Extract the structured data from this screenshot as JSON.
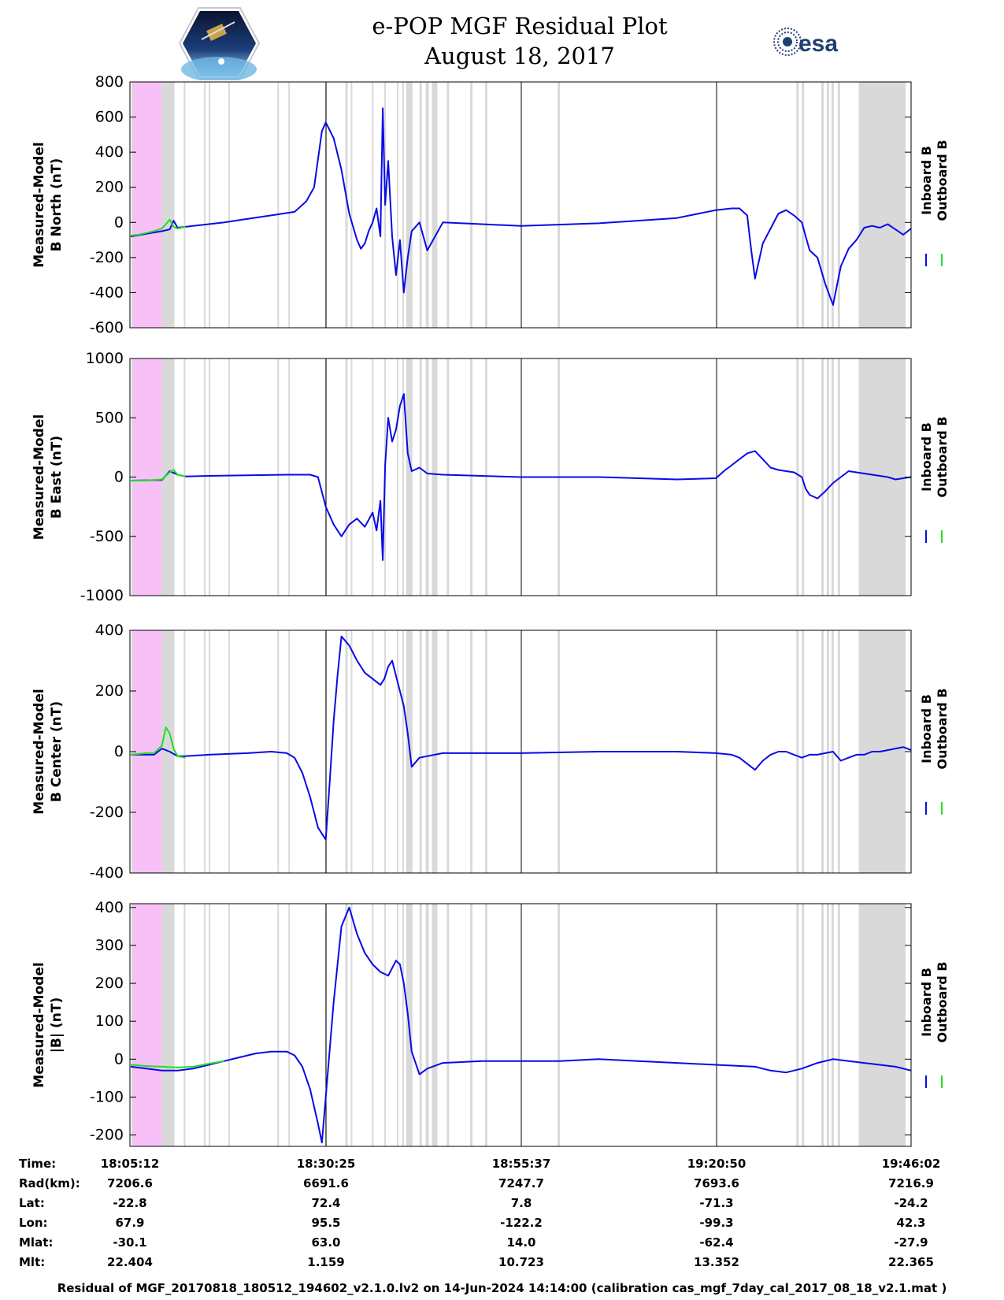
{
  "title": [
    "e-POP MGF Residual Plot",
    "August 18, 2017"
  ],
  "logos": {
    "left": "CASSIOPE",
    "right": "esa"
  },
  "colors": {
    "inboard": "#0a0ae6",
    "outboard": "#22dd22",
    "gap": "#d9d9d9",
    "calibration": "#f7c1f7"
  },
  "legend": {
    "inboard": "Inboard B",
    "outboard": "Outboard B"
  },
  "x_ticks": [
    "18:05:12",
    "18:30:25",
    "18:55:37",
    "19:20:50",
    "19:46:02"
  ],
  "info_rows": [
    {
      "label": "Time:",
      "values": [
        "18:05:12",
        "18:30:25",
        "18:55:37",
        "19:20:50",
        "19:46:02"
      ]
    },
    {
      "label": "Rad(km):",
      "values": [
        "7206.6",
        "6691.6",
        "7247.7",
        "7693.6",
        "7216.9"
      ]
    },
    {
      "label": "Lat:",
      "values": [
        "-22.8",
        "72.4",
        "7.8",
        "-71.3",
        "-24.2"
      ]
    },
    {
      "label": "Lon:",
      "values": [
        "67.9",
        "95.5",
        "-122.2",
        "-99.3",
        "42.3"
      ]
    },
    {
      "label": "Mlat:",
      "values": [
        "-30.1",
        "63.0",
        "14.0",
        "-62.4",
        "-27.9"
      ]
    },
    {
      "label": "Mlt:",
      "values": [
        "22.404",
        "1.159",
        "10.723",
        "13.352",
        "22.365"
      ]
    }
  ],
  "footer": "Residual of MGF_20170818_180512_194602_v2.1.0.lv2 on 14-Jun-2024 14:14:00 (calibration cas_mgf_7day_cal_2017_08_18_v2.1.mat )",
  "chart_data": [
    {
      "type": "line",
      "ylabel": [
        "Measured-Model",
        "B North (nT)"
      ],
      "ylim": [
        -600,
        800
      ],
      "yticks": [
        -600,
        -400,
        -200,
        0,
        200,
        400,
        600,
        800
      ],
      "xlim": [
        -0.1,
        100
      ],
      "series": [
        {
          "name": "Inboard B",
          "x": [
            0,
            2,
            4,
            5,
            5.5,
            6,
            7,
            9,
            12,
            15,
            18,
            21,
            22.5,
            23.5,
            24.5,
            25,
            26,
            27,
            28,
            29,
            29.5,
            30,
            30.5,
            31,
            31.5,
            32,
            32.3,
            32.6,
            33,
            33.5,
            34,
            34.5,
            35,
            35.5,
            36,
            37,
            38,
            40,
            50,
            60,
            65,
            70,
            75,
            76,
            77,
            78,
            79,
            79.5,
            80,
            81,
            83,
            84,
            85,
            86,
            86.5,
            87,
            88,
            89,
            90,
            91,
            92,
            93,
            94,
            95,
            96,
            97,
            98,
            99,
            100
          ],
          "y": [
            -80,
            -65,
            -50,
            -40,
            10,
            -30,
            -25,
            -15,
            0,
            20,
            40,
            60,
            120,
            200,
            520,
            570,
            480,
            300,
            50,
            -100,
            -150,
            -120,
            -50,
            0,
            80,
            -80,
            650,
            100,
            350,
            -80,
            -300,
            -100,
            -400,
            -200,
            -50,
            0,
            -160,
            0,
            -20,
            -5,
            10,
            25,
            70,
            75,
            80,
            80,
            40,
            -150,
            -320,
            -120,
            50,
            70,
            40,
            0,
            -80,
            -160,
            -200,
            -350,
            -470,
            -250,
            -150,
            -100,
            -30,
            -20,
            -30,
            -10,
            -40,
            -70,
            -35
          ]
        },
        {
          "name": "Outboard B",
          "x": [
            0,
            1,
            2,
            3,
            4,
            4.5,
            5,
            5.5,
            6,
            7
          ],
          "y": [
            -75,
            -70,
            -60,
            -50,
            -35,
            -10,
            15,
            -25,
            -35,
            -25
          ]
        }
      ]
    },
    {
      "type": "line",
      "ylabel": [
        "Measured-Model",
        "B East (nT)"
      ],
      "ylim": [
        -1000,
        1000
      ],
      "yticks": [
        -1000,
        -500,
        0,
        500,
        1000
      ],
      "xlim": [
        -0.1,
        100
      ],
      "series": [
        {
          "name": "Inboard B",
          "x": [
            0,
            4,
            5,
            6,
            7,
            10,
            15,
            20,
            23,
            24,
            25,
            26,
            27,
            28,
            29,
            30,
            31,
            31.5,
            32,
            32.3,
            32.6,
            33,
            33.5,
            34,
            34.5,
            35,
            35.5,
            36,
            37,
            38,
            40,
            50,
            60,
            70,
            75,
            76,
            77,
            78,
            79,
            80,
            81,
            82,
            83,
            84,
            85,
            86,
            86.5,
            87,
            88,
            89,
            90,
            91,
            92,
            93,
            94,
            95,
            96,
            97,
            98,
            99,
            100
          ],
          "y": [
            -30,
            -25,
            50,
            20,
            5,
            10,
            15,
            20,
            20,
            0,
            -250,
            -400,
            -500,
            -400,
            -350,
            -420,
            -300,
            -450,
            -200,
            -700,
            100,
            500,
            300,
            400,
            600,
            700,
            200,
            50,
            80,
            30,
            20,
            0,
            0,
            -20,
            -10,
            50,
            100,
            150,
            200,
            220,
            150,
            80,
            60,
            50,
            40,
            0,
            -100,
            -150,
            -180,
            -120,
            -50,
            0,
            50,
            40,
            30,
            20,
            10,
            0,
            -20,
            -10,
            0
          ]
        },
        {
          "name": "Outboard B",
          "x": [
            0,
            2,
            4,
            5,
            5.5,
            6,
            7
          ],
          "y": [
            -30,
            -28,
            -20,
            40,
            60,
            20,
            5
          ]
        }
      ]
    },
    {
      "type": "line",
      "ylabel": [
        "Measured-Model",
        "B Center (nT)"
      ],
      "ylim": [
        -400,
        400
      ],
      "yticks": [
        -400,
        -200,
        0,
        200,
        400
      ],
      "xlim": [
        -0.1,
        100
      ],
      "series": [
        {
          "name": "Inboard B",
          "x": [
            0,
            3,
            4,
            5,
            6,
            7,
            10,
            15,
            18,
            20,
            21,
            22,
            23,
            24,
            25,
            25.5,
            26,
            26.5,
            27,
            28,
            29,
            30,
            31,
            32,
            32.5,
            33,
            33.5,
            34,
            35,
            35.5,
            36,
            37,
            40,
            50,
            60,
            70,
            75,
            77,
            78,
            79,
            80,
            81,
            82,
            83,
            84,
            85,
            86,
            87,
            88,
            89,
            90,
            91,
            92,
            93,
            94,
            95,
            96,
            97,
            98,
            99,
            100
          ],
          "y": [
            -10,
            -10,
            10,
            0,
            -15,
            -15,
            -10,
            -5,
            0,
            -5,
            -20,
            -70,
            -150,
            -250,
            -290,
            -100,
            100,
            250,
            380,
            350,
            300,
            260,
            240,
            220,
            240,
            280,
            300,
            250,
            150,
            60,
            -50,
            -20,
            -5,
            -5,
            0,
            0,
            -5,
            -10,
            -20,
            -40,
            -60,
            -30,
            -10,
            0,
            0,
            -10,
            -20,
            -10,
            -10,
            -5,
            0,
            -30,
            -20,
            -10,
            -10,
            0,
            0,
            5,
            10,
            15,
            5
          ]
        },
        {
          "name": "Outboard B",
          "x": [
            0,
            2,
            3,
            4,
            4.5,
            5,
            5.5,
            6,
            7
          ],
          "y": [
            -10,
            -5,
            -5,
            20,
            80,
            60,
            10,
            -15,
            -20
          ]
        }
      ]
    },
    {
      "type": "line",
      "ylabel": [
        "Measured-Model",
        "|B| (nT)"
      ],
      "ylim": [
        -230,
        410
      ],
      "yticks": [
        -200,
        -100,
        0,
        100,
        200,
        300,
        400
      ],
      "xlim": [
        -0.1,
        100
      ],
      "series": [
        {
          "name": "Inboard B",
          "x": [
            0,
            2,
            4,
            6,
            8,
            10,
            12,
            14,
            16,
            18,
            20,
            21,
            22,
            23,
            24,
            24.5,
            25,
            26,
            27,
            28,
            29,
            30,
            31,
            32,
            33,
            34,
            34.5,
            35,
            35.5,
            36,
            37,
            38,
            40,
            45,
            50,
            55,
            60,
            65,
            70,
            75,
            80,
            82,
            84,
            86,
            88,
            90,
            92,
            94,
            96,
            98,
            100
          ],
          "y": [
            -20,
            -25,
            -30,
            -30,
            -25,
            -15,
            -5,
            5,
            15,
            20,
            20,
            10,
            -20,
            -80,
            -170,
            -220,
            -100,
            150,
            350,
            400,
            330,
            280,
            250,
            230,
            220,
            260,
            250,
            200,
            120,
            20,
            -40,
            -25,
            -10,
            -5,
            -5,
            -5,
            0,
            -5,
            -10,
            -15,
            -20,
            -30,
            -35,
            -25,
            -10,
            0,
            -5,
            -10,
            -15,
            -20,
            -30
          ]
        },
        {
          "name": "Outboard B",
          "x": [
            0,
            2,
            4,
            6,
            8,
            10,
            12
          ],
          "y": [
            -15,
            -18,
            -20,
            -22,
            -20,
            -12,
            -5
          ]
        }
      ]
    }
  ]
}
